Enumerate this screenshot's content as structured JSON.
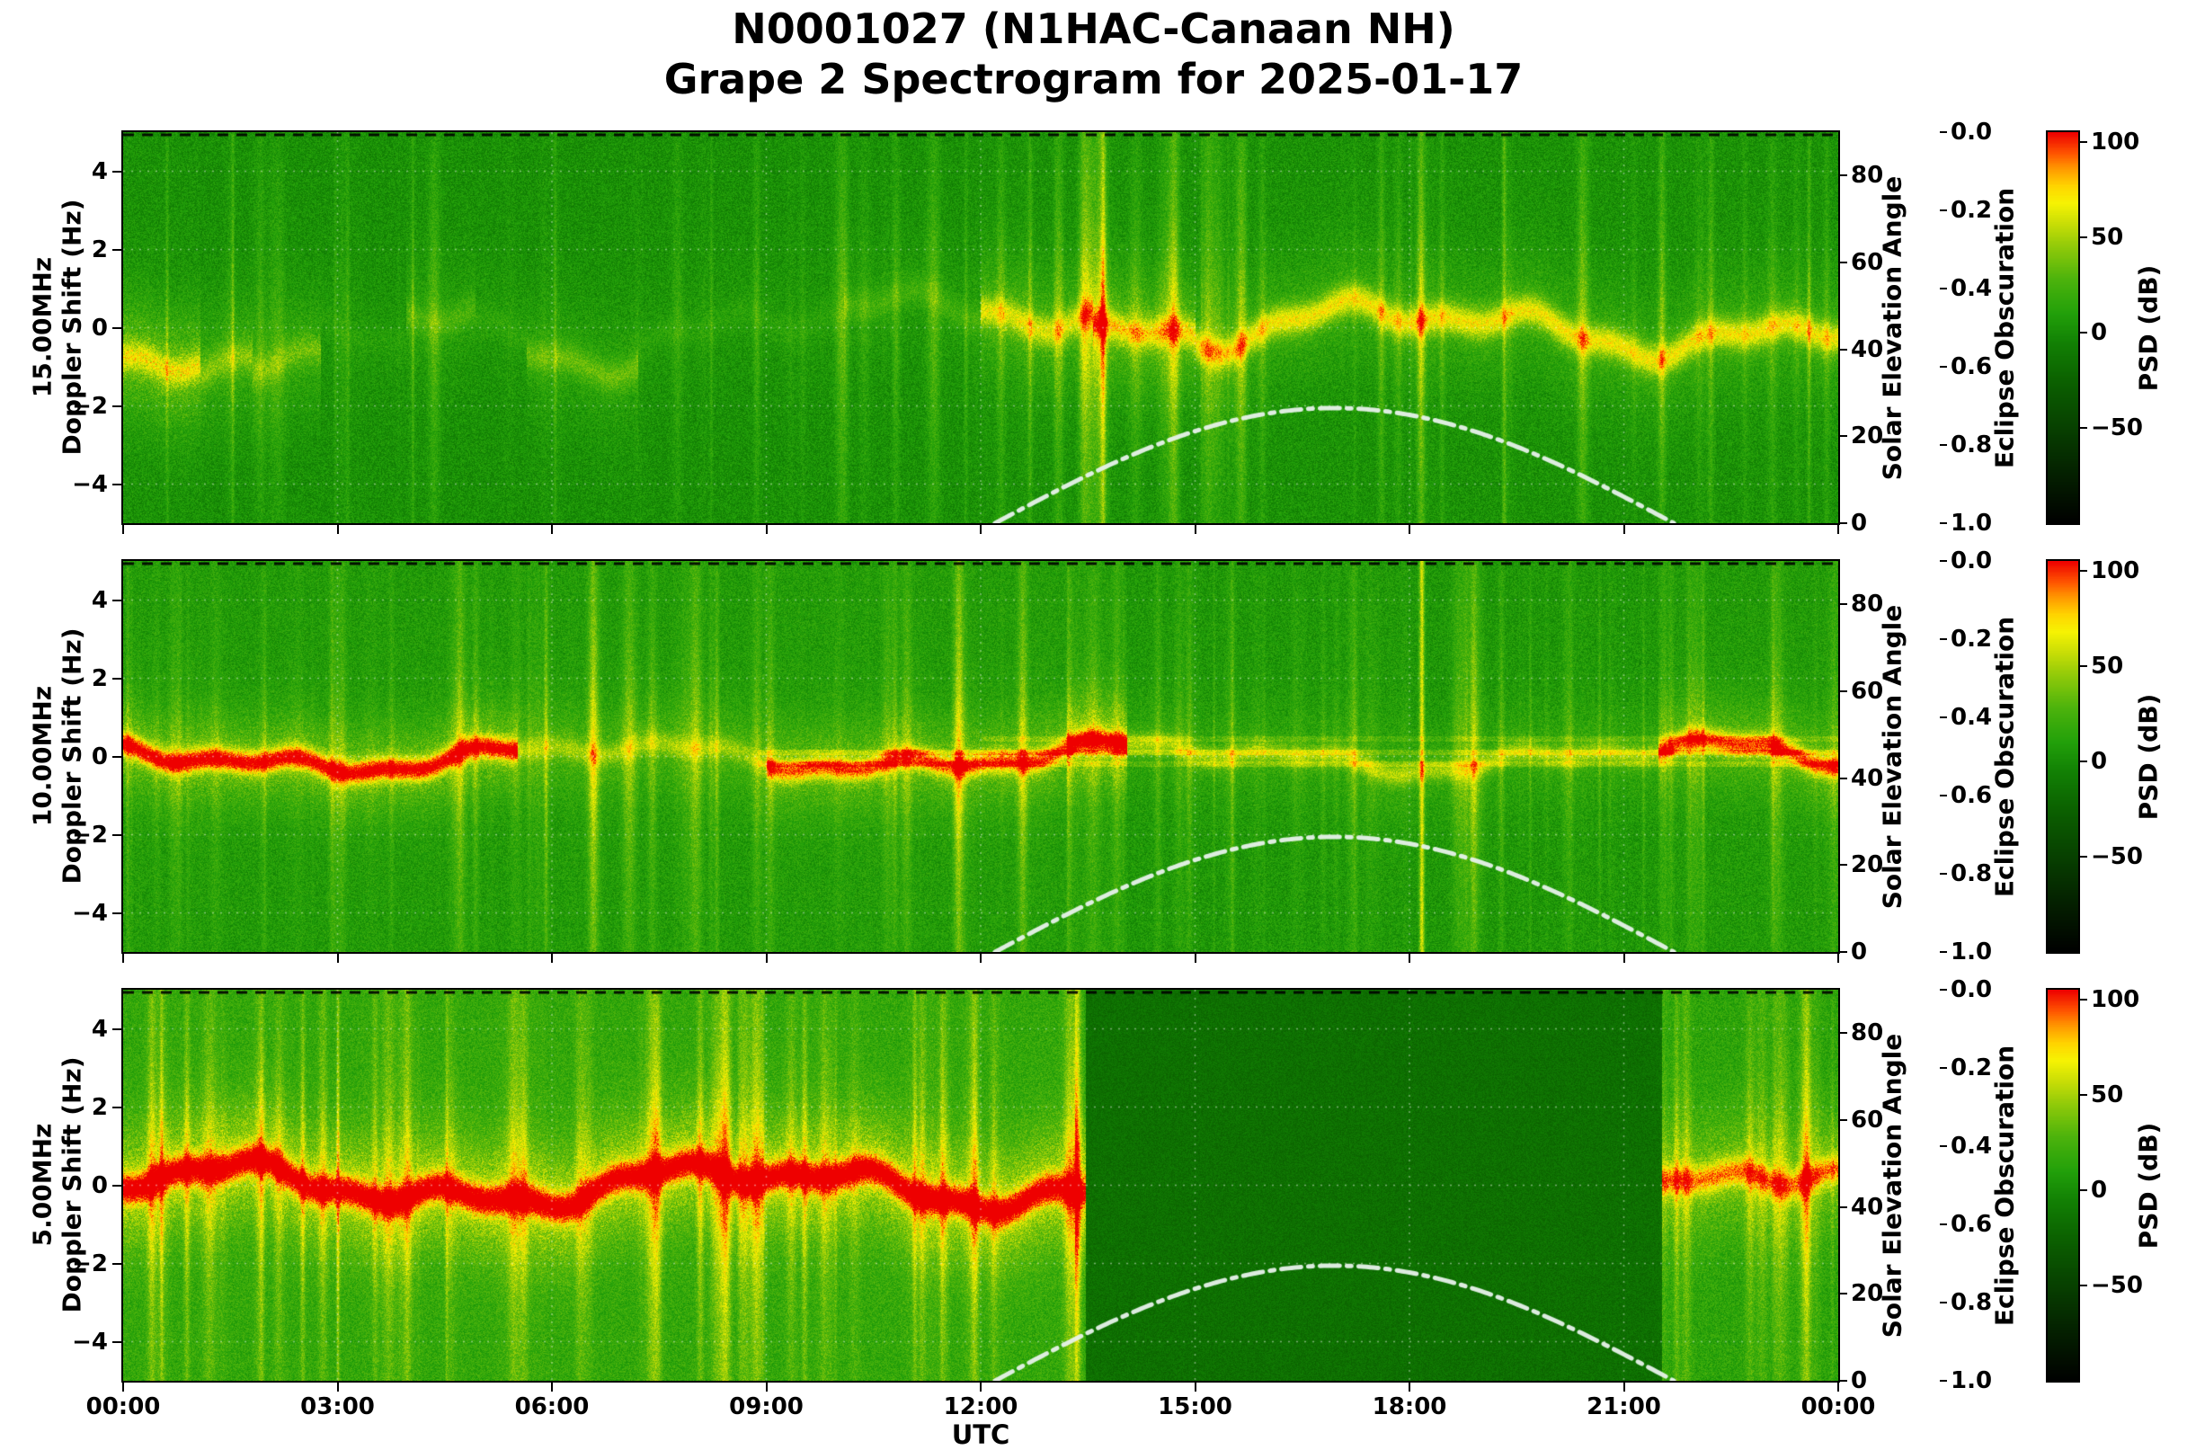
{
  "title": {
    "line1": "N0001027 (N1HAC-Canaan NH)",
    "line2": "Grape 2 Spectrogram for 2025-01-17"
  },
  "axes": {
    "xlabel": "UTC",
    "x_tick_labels": [
      "00:00",
      "03:00",
      "06:00",
      "09:00",
      "12:00",
      "15:00",
      "18:00",
      "21:00",
      "00:00"
    ],
    "x_tick_hours": [
      0,
      3,
      6,
      9,
      12,
      15,
      18,
      21,
      24
    ],
    "x_range_hours": [
      0,
      24
    ],
    "doppler_label": "Doppler Shift (Hz)",
    "doppler_lim": [
      -5,
      5
    ],
    "doppler_tick_values": [
      4,
      2,
      0,
      -2,
      -4
    ],
    "doppler_tick_labels": [
      "4",
      "2",
      "0",
      "−2",
      "−4"
    ],
    "solar_label": "Solar Elevation Angle",
    "solar_lim": [
      0,
      90
    ],
    "solar_tick_values": [
      0,
      20,
      40,
      60,
      80
    ],
    "solar_tick_labels": [
      "0",
      "20",
      "40",
      "60",
      "80"
    ],
    "eclipse_label": "Eclipse Obscuration",
    "eclipse_lim": [
      0,
      1
    ],
    "eclipse_inverted": true,
    "eclipse_tick_values": [
      0,
      0.2,
      0.4,
      0.6,
      0.8,
      1
    ],
    "eclipse_tick_labels": [
      "0.0",
      "0.2",
      "0.4",
      "0.6",
      "0.8",
      "1.0"
    ],
    "colorbar_label": "PSD (dB)",
    "colorbar_lim": [
      -100,
      105
    ],
    "colorbar_tick_values": [
      100,
      50,
      0,
      -50
    ],
    "colorbar_tick_labels": [
      "100",
      "50",
      "0",
      "−50"
    ]
  },
  "chart_data": {
    "type": "heatmap",
    "x_unit": "UTC hours (00:00 to 24:00)",
    "y_unit": "Doppler shift (Hz), -5 to +5",
    "value_unit": "PSD (dB)",
    "grid": true,
    "solar_curve": {
      "rise_utc": 12.2,
      "set_utc": 21.7,
      "peak_deg": 26.5,
      "style": "white dash-dot arc"
    },
    "eclipse_curve": {
      "constant_value": 0.0,
      "style": "black dashed line along panel top"
    },
    "colormap_stops": [
      [
        -100,
        "#000000"
      ],
      [
        -75,
        "#041f00"
      ],
      [
        -50,
        "#074000"
      ],
      [
        -25,
        "#0b6100"
      ],
      [
        -5,
        "#128104"
      ],
      [
        10,
        "#22a00a"
      ],
      [
        28,
        "#4cb30c"
      ],
      [
        45,
        "#90ca09"
      ],
      [
        58,
        "#ccdf06"
      ],
      [
        68,
        "#f6f303"
      ],
      [
        77,
        "#ffd400"
      ],
      [
        86,
        "#ff9900"
      ],
      [
        94,
        "#ff5500"
      ],
      [
        105,
        "#ee0000"
      ]
    ],
    "panels": [
      {
        "freq_label": "15.00MHz",
        "summary": "Mostly green noise floor; yellow burst near 0 to -2 Hz around 00:00-02:30; sparse vertical scintillation streaks through morning; strong spiky wavy trace near 0 Hz from about 12:30 to 24:00 with excursions to +3/-4 Hz.",
        "seed": 11,
        "noise": {
          "base": 2,
          "speckle": 13,
          "streak_amp": 26,
          "streak_count": 110,
          "line_width": 0.28,
          "spread_width": 1.15,
          "wiggle": [
            0.45,
            0.28,
            0.15
          ],
          "vlines": [
            {
              "t": 0.805,
              "amp": 26,
              "w": 0.0012
            }
          ],
          "segments": [
            {
              "t0": 0.0,
              "t1": 0.045,
              "line": 40,
              "spread": 26,
              "streak": 1.1,
              "base": 3,
              "center": -0.7
            },
            {
              "t0": 0.045,
              "t1": 0.075,
              "line": 25,
              "spread": 16,
              "streak": 1.0,
              "base": 2,
              "center": -1.0
            },
            {
              "t0": 0.075,
              "t1": 0.115,
              "line": 20,
              "spread": 14,
              "streak": 1.1,
              "base": 2,
              "center": -1.4
            },
            {
              "t0": 0.115,
              "t1": 0.165,
              "line": 5,
              "spread": 4,
              "streak": 0.8,
              "base": 2,
              "center": -0.5
            },
            {
              "t0": 0.165,
              "t1": 0.205,
              "line": 16,
              "spread": 8,
              "streak": 0.9,
              "base": 2,
              "center": 0.3
            },
            {
              "t0": 0.205,
              "t1": 0.235,
              "line": 8,
              "spread": 5,
              "streak": 0.8,
              "base": 2,
              "center": 0
            },
            {
              "t0": 0.235,
              "t1": 0.3,
              "line": 22,
              "spread": 10,
              "streak": 1.1,
              "base": 2,
              "center": -0.4
            },
            {
              "t0": 0.3,
              "t1": 0.42,
              "line": 7,
              "spread": 4,
              "streak": 0.75,
              "base": 2,
              "center": 0
            },
            {
              "t0": 0.42,
              "t1": 0.5,
              "line": 14,
              "spread": 6,
              "streak": 0.9,
              "base": 2,
              "center": 0.2
            },
            {
              "t0": 0.5,
              "t1": 0.565,
              "line": 42,
              "spread": 18,
              "streak": 1.6,
              "base": 3,
              "center": 0.5
            },
            {
              "t0": 0.565,
              "t1": 0.625,
              "line": 50,
              "spread": 22,
              "streak": 1.7,
              "base": 3,
              "center": 0.2
            },
            {
              "t0": 0.625,
              "t1": 1.0,
              "line": 52,
              "spread": 14,
              "streak": 1.35,
              "base": 3,
              "center": 0
            }
          ]
        }
      },
      {
        "freq_label": "10.00MHz",
        "summary": "Bright yellow-green field with dense vertical streaks all day; red-orange carrier trace near 0 Hz from 00:00 to ~05:30 and ~09:00 to 13:30; thinner yellow trace 14:00-21:30; orange again 21:30-24:00; faint horizontal RFI lines near 0 Hz after ~09:00; bright vertical line near 18:10.",
        "seed": 22,
        "noise": {
          "base": 8,
          "speckle": 13,
          "streak_amp": 24,
          "streak_count": 150,
          "line_width": 0.2,
          "spread_width": 0.85,
          "wiggle": [
            0.28,
            0.16,
            0.09
          ],
          "hlines": [
            {
              "f": 0.45,
              "amp": 11,
              "t0": 0.5,
              "t1": 1.0
            },
            {
              "f": 0.12,
              "amp": 16,
              "t0": 0.37,
              "t1": 1.0
            },
            {
              "f": -0.18,
              "amp": 13,
              "t0": 0.37,
              "t1": 1.0
            }
          ],
          "vlines": [
            {
              "t": 0.757,
              "amp": 55,
              "w": 0.0015
            }
          ],
          "segments": [
            {
              "t0": 0.0,
              "t1": 0.23,
              "line": 85,
              "spread": 25,
              "streak": 1.0,
              "base": 8,
              "center": 0
            },
            {
              "t0": 0.23,
              "t1": 0.375,
              "line": 25,
              "spread": 15,
              "streak": 1.35,
              "base": 8,
              "center": 0
            },
            {
              "t0": 0.375,
              "t1": 0.55,
              "line": 68,
              "spread": 22,
              "streak": 1.1,
              "base": 9,
              "center": 0
            },
            {
              "t0": 0.55,
              "t1": 0.585,
              "line": 80,
              "spread": 32,
              "streak": 1.5,
              "base": 10,
              "center": 0
            },
            {
              "t0": 0.585,
              "t1": 0.895,
              "line": 34,
              "spread": 10,
              "streak": 0.85,
              "base": 6,
              "center": 0
            },
            {
              "t0": 0.895,
              "t1": 1.0,
              "line": 72,
              "spread": 20,
              "streak": 1.05,
              "base": 8,
              "center": 0
            }
          ]
        }
      },
      {
        "freq_label": "5.00MHz",
        "summary": "Very bright yellow field with strong red carrier at 0 Hz and heavy vertical streaking from 00:00 to ~13:20; abrupt daytime absorption blackout (flat dark green) from ~13:30 to ~21:30; bright activity and yellow carrier resume 21:30-24:00.",
        "seed": 33,
        "noise": {
          "base": 17,
          "speckle": 14,
          "streak_amp": 28,
          "streak_count": 160,
          "line_width": 0.26,
          "spread_width": 1.1,
          "wiggle": [
            0.4,
            0.24,
            0.13
          ],
          "segments": [
            {
              "t0": 0.0,
              "t1": 0.555,
              "line": 85,
              "spread": 32,
              "streak": 1.25,
              "base": 17,
              "center": 0
            },
            {
              "t0": 0.555,
              "t1": 0.561,
              "line": 60,
              "spread": 40,
              "streak": 1.9,
              "base": 14,
              "center": 0
            },
            {
              "t0": 0.561,
              "t1": 0.897,
              "line": 0,
              "spread": 0,
              "streak": 0,
              "base": -16,
              "center": 0,
              "speck": 9
            },
            {
              "t0": 0.897,
              "t1": 1.0,
              "line": 55,
              "spread": 22,
              "streak": 1.15,
              "base": 14,
              "center": 0
            }
          ]
        }
      }
    ]
  }
}
